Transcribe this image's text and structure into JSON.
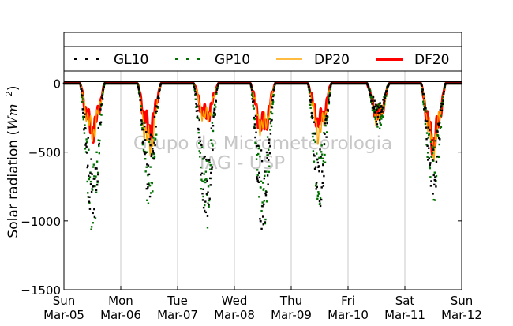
{
  "chart_data": {
    "type": "line",
    "ylabel_main": "Solar radiation (",
    "ylabel_units": "Wm",
    "ylabel_exp": "−2",
    "ylabel_close": ")",
    "ylim": [
      -1500,
      370
    ],
    "yticks": [
      0,
      -500,
      -1000,
      -1500
    ],
    "ytick_labels": [
      "0",
      "−500",
      "−1000",
      "−1500"
    ],
    "xlim": [
      0,
      7
    ],
    "xticks": [
      0,
      1,
      2,
      3,
      4,
      5,
      6,
      7
    ],
    "xtick_labels": [
      [
        "Sun",
        "Mar-05"
      ],
      [
        "Mon",
        "Mar-06"
      ],
      [
        "Tue",
        "Mar-07"
      ],
      [
        "Wed",
        "Mar-08"
      ],
      [
        "Thu",
        "Mar-09"
      ],
      [
        "Fri",
        "Mar-10"
      ],
      [
        "Sat",
        "Mar-11"
      ],
      [
        "Sun",
        "Mar-12"
      ]
    ],
    "grid": "vertical",
    "legend_position": "top",
    "watermark": [
      "Grupo de Micrometeorologia",
      "IAG - USP"
    ],
    "series": [
      {
        "name": "GL10",
        "style": "dots",
        "color": "#000000"
      },
      {
        "name": "GP10",
        "style": "dots",
        "color": "#007000"
      },
      {
        "name": "DP20",
        "style": "line",
        "color": "#ffa500"
      },
      {
        "name": "DF20",
        "style": "line",
        "color": "#ff0000"
      }
    ],
    "days": [
      {
        "center": 0.5,
        "width": 0.44,
        "df20_min": -440,
        "dp20_min": -455,
        "gl10_min": -1060,
        "gp10_min": -1130
      },
      {
        "center": 1.5,
        "width": 0.42,
        "df20_min": -430,
        "dp20_min": -580,
        "gl10_min": -860,
        "gp10_min": -930
      },
      {
        "center": 2.5,
        "width": 0.44,
        "df20_min": -310,
        "dp20_min": -330,
        "gl10_min": -1060,
        "gp10_min": -1100
      },
      {
        "center": 3.5,
        "width": 0.44,
        "df20_min": -420,
        "dp20_min": -420,
        "gl10_min": -1100,
        "gp10_min": -1130
      },
      {
        "center": 4.5,
        "width": 0.42,
        "df20_min": -370,
        "dp20_min": -460,
        "gl10_min": -940,
        "gp10_min": -970
      },
      {
        "center": 5.53,
        "width": 0.4,
        "df20_min": -305,
        "dp20_min": -335,
        "gl10_min": -330,
        "gp10_min": -345
      },
      {
        "center": 6.5,
        "width": 0.44,
        "df20_min": -540,
        "dp20_min": -570,
        "gl10_min": -880,
        "gp10_min": -930
      }
    ]
  }
}
